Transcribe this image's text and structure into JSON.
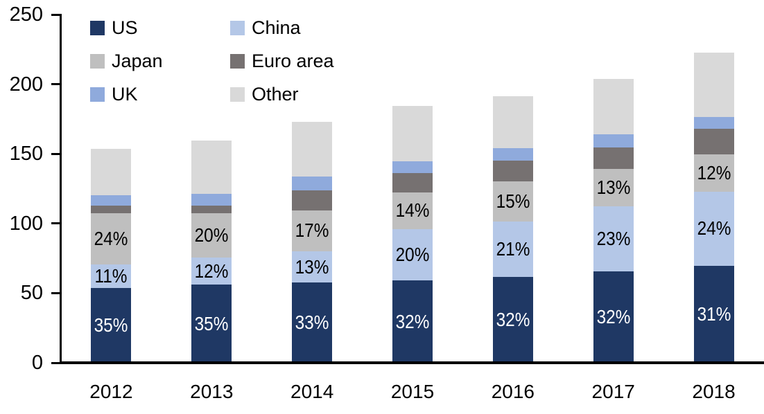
{
  "page": {
    "background_color": "#ffffff",
    "axis_color": "#000000",
    "text_color": "#000000"
  },
  "chart_data": {
    "type": "bar",
    "stacked": true,
    "title": "",
    "xlabel": "",
    "ylabel": "",
    "categories": [
      "2012",
      "2013",
      "2014",
      "2015",
      "2016",
      "2017",
      "2018"
    ],
    "series": [
      {
        "name": "US",
        "color": "#1f3864",
        "values": [
          53.5,
          56,
          57.5,
          59,
          61.5,
          65.5,
          69.5
        ],
        "labels": [
          "35%",
          "35%",
          "33%",
          "32%",
          "32%",
          "32%",
          "31%"
        ],
        "label_color": "#ffffff"
      },
      {
        "name": "China",
        "color": "#b4c7e7",
        "values": [
          17,
          19.5,
          22.5,
          37,
          40,
          47,
          53.5
        ],
        "labels": [
          "11%",
          "12%",
          "13%",
          "20%",
          "21%",
          "23%",
          "24%"
        ],
        "label_color": "#000000"
      },
      {
        "name": "Japan",
        "color": "#bfbfbf",
        "values": [
          37,
          32,
          29.5,
          26.5,
          28.5,
          26.5,
          26.5
        ],
        "labels": [
          "24%",
          "20%",
          "17%",
          "14%",
          "15%",
          "13%",
          "12%"
        ],
        "label_color": "#000000"
      },
      {
        "name": "Euro area",
        "color": "#767171",
        "values": [
          5.5,
          5.5,
          14.5,
          13.5,
          15,
          15.5,
          18.5
        ],
        "labels": null,
        "label_color": null
      },
      {
        "name": "UK",
        "color": "#8faadc",
        "values": [
          7.5,
          8.5,
          9.5,
          8.5,
          9,
          9.5,
          8.5
        ],
        "labels": null,
        "label_color": null
      },
      {
        "name": "Other",
        "color": "#d9d9d9",
        "values": [
          33,
          38,
          39.5,
          40,
          37.5,
          40,
          46
        ],
        "labels": null,
        "label_color": null
      }
    ],
    "totals": [
      153.5,
      159.5,
      173,
      184.5,
      191.5,
      204,
      222.5
    ],
    "y_axis": {
      "min": 0,
      "max": 250,
      "step": 50,
      "tick_labels": [
        "0",
        "50",
        "100",
        "150",
        "200",
        "250"
      ]
    },
    "x_axis": {
      "tick_labels": [
        "2012",
        "2013",
        "2014",
        "2015",
        "2016",
        "2017",
        "2018"
      ]
    },
    "legend": {
      "position": "top-left",
      "columns": 2,
      "items": [
        {
          "label": "US",
          "color": "#1f3864"
        },
        {
          "label": "China",
          "color": "#b4c7e7"
        },
        {
          "label": "Japan",
          "color": "#bfbfbf"
        },
        {
          "label": "Euro area",
          "color": "#767171"
        },
        {
          "label": "UK",
          "color": "#8faadc"
        },
        {
          "label": "Other",
          "color": "#d9d9d9"
        }
      ]
    },
    "grid": false,
    "legend_on": true
  }
}
